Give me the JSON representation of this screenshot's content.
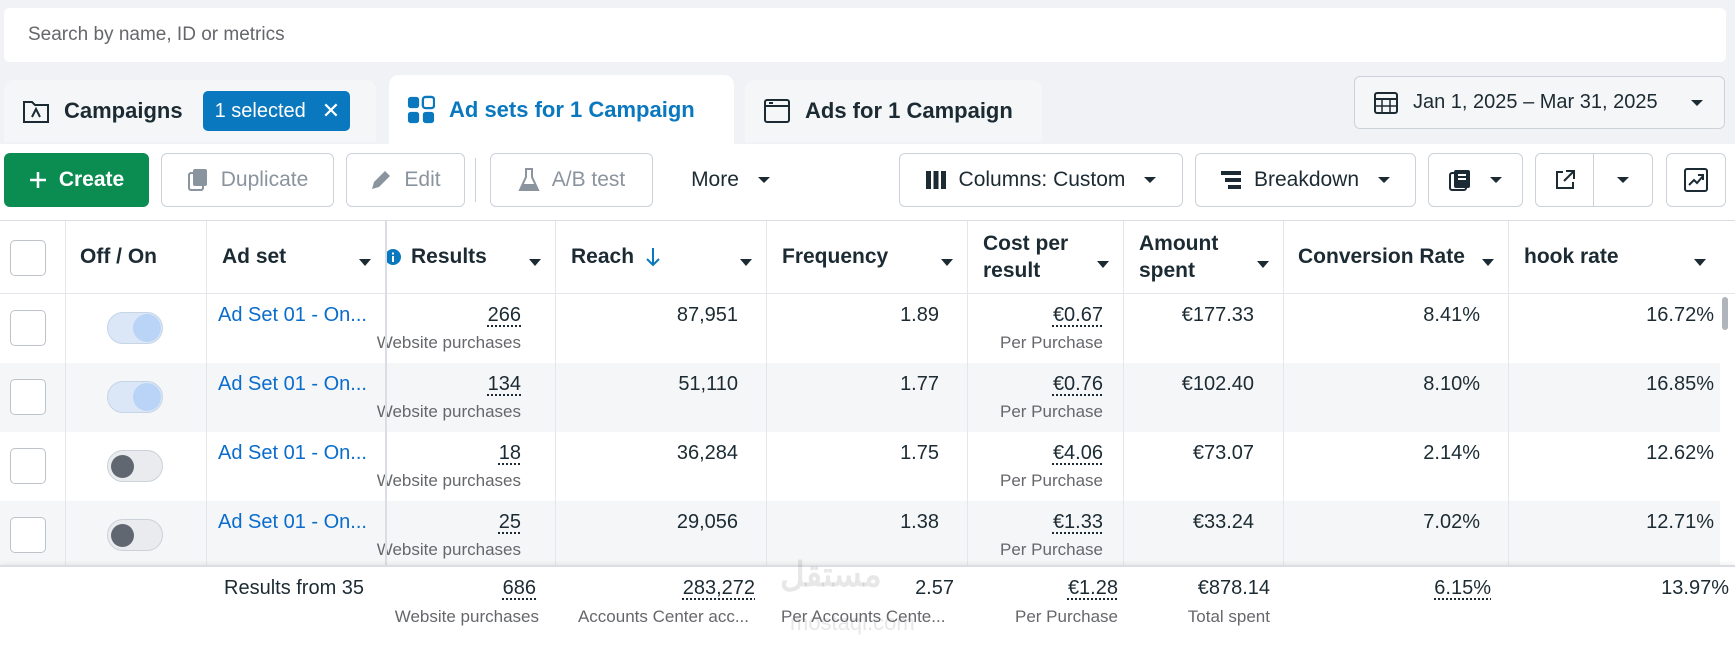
{
  "search": {
    "placeholder": "Search by name, ID or metrics"
  },
  "tabs": {
    "campaigns": {
      "label": "Campaigns",
      "selected_pill": "1 selected"
    },
    "adsets": {
      "label": "Ad sets for 1 Campaign"
    },
    "ads": {
      "label": "Ads for 1 Campaign"
    }
  },
  "date_range": "Jan 1, 2025 – Mar 31, 2025",
  "toolbar": {
    "create": "Create",
    "duplicate": "Duplicate",
    "edit": "Edit",
    "ab_test": "A/B test",
    "more": "More",
    "columns": "Columns: Custom",
    "breakdown": "Breakdown"
  },
  "columns": {
    "off_on": "Off / On",
    "ad_set": "Ad set",
    "results": "Results",
    "reach": "Reach",
    "frequency": "Frequency",
    "cost_per_result_1": "Cost per",
    "cost_per_result_2": "result",
    "amount_spent_1": "Amount",
    "amount_spent_2": "spent",
    "conversion_rate": "Conversion Rate",
    "hook_rate": "hook rate"
  },
  "rows": [
    {
      "toggle": "on",
      "name": "Ad Set 01 - On...",
      "results": "266",
      "results_sub": "Website purchases",
      "reach": "87,951",
      "frequency": "1.89",
      "cpr": "€0.67",
      "cpr_sub": "Per Purchase",
      "spent": "€177.33",
      "conv": "8.41%",
      "hook": "16.72%"
    },
    {
      "toggle": "on",
      "name": "Ad Set 01 - On...",
      "results": "134",
      "results_sub": "Website purchases",
      "reach": "51,110",
      "frequency": "1.77",
      "cpr": "€0.76",
      "cpr_sub": "Per Purchase",
      "spent": "€102.40",
      "conv": "8.10%",
      "hook": "16.85%"
    },
    {
      "toggle": "off",
      "name": "Ad Set 01 - On...",
      "results": "18",
      "results_sub": "Website purchases",
      "reach": "36,284",
      "frequency": "1.75",
      "cpr": "€4.06",
      "cpr_sub": "Per Purchase",
      "spent": "€73.07",
      "conv": "2.14%",
      "hook": "12.62%"
    },
    {
      "toggle": "off",
      "name": "Ad Set 01 - On...",
      "results": "25",
      "results_sub": "Website purchases",
      "reach": "29,056",
      "frequency": "1.38",
      "cpr": "€1.33",
      "cpr_sub": "Per Purchase",
      "spent": "€33.24",
      "conv": "7.02%",
      "hook": "12.71%"
    }
  ],
  "totals": {
    "label": "Results from 35",
    "results": "686",
    "results_sub": "Website purchases",
    "reach": "283,272",
    "reach_sub": "Accounts Center acc...",
    "frequency": "2.57",
    "frequency_sub": "Per Accounts Cente...",
    "cpr": "€1.28",
    "cpr_sub": "Per Purchase",
    "spent": "€878.14",
    "spent_sub": "Total spent",
    "conv": "6.15%",
    "hook": "13.97%"
  },
  "watermark": {
    "line1": "مستقل",
    "line2": "mostaql.com"
  },
  "colors": {
    "accent": "#0a78be",
    "create": "#0b8d52",
    "link": "#0a6ccc"
  }
}
